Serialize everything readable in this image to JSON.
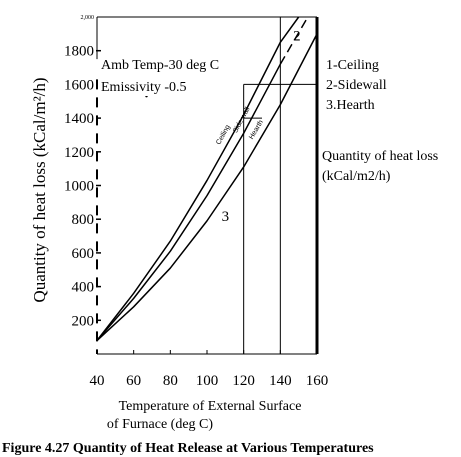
{
  "chart_data": {
    "type": "line",
    "title": "",
    "caption": "Figure 4.27  Quantity of Heat Release at Various Temperatures",
    "xlabel_line1": "Temperature of External Surface",
    "xlabel_line2": "of Furnace (deg C)",
    "ylabel": "Quantity of heat loss (kCal/m²/h)",
    "xlim": [
      40,
      160
    ],
    "ylim": [
      0,
      2000
    ],
    "x_ticks": [
      40,
      60,
      80,
      100,
      120,
      140,
      160
    ],
    "y_ticks": [
      200,
      400,
      600,
      800,
      1000,
      1200,
      1400,
      1600,
      1800
    ],
    "y_top_tick_label": "2,000",
    "grid": "partial",
    "conditions_line1": "Amb Temp-30 deg C",
    "conditions_line2": "Emissivity -0.5",
    "legend": [
      "1-Ceiling",
      "2-Sidewall",
      "3.Hearth"
    ],
    "right_label_line1": "Quantity of heat loss",
    "right_label_line2": "(kCal/m2/h)",
    "series": [
      {
        "name": "Ceiling",
        "number": "1",
        "x": [
          40,
          60,
          80,
          100,
          120,
          140,
          150
        ],
        "y": [
          80,
          360,
          670,
          1030,
          1420,
          1850,
          2000
        ]
      },
      {
        "name": "Side wall",
        "number": "2",
        "x": [
          40,
          60,
          80,
          100,
          120,
          140,
          155
        ],
        "y": [
          80,
          330,
          610,
          940,
          1310,
          1720,
          2000
        ]
      },
      {
        "name": "Hearth",
        "number": "3",
        "x": [
          40,
          60,
          80,
          100,
          120,
          140,
          160
        ],
        "y": [
          80,
          280,
          510,
          790,
          1110,
          1480,
          1900
        ]
      }
    ]
  }
}
